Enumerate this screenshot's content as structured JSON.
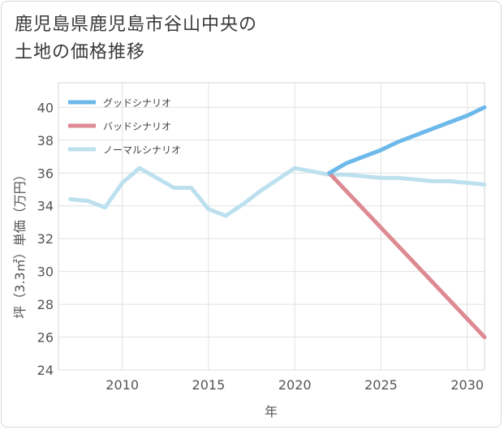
{
  "title_line1": "鹿児島県鹿児島市谷山中央の",
  "title_line2": "土地の価格推移",
  "chart_data": {
    "type": "line",
    "title": "鹿児島県鹿児島市谷山中央の土地の価格推移",
    "xlabel": "年",
    "ylabel": "坪（3.3㎡）単価（万円）",
    "xlim": [
      2006.3,
      2031
    ],
    "ylim": [
      24,
      41.5
    ],
    "xticks": [
      2010,
      2015,
      2020,
      2025,
      2030
    ],
    "yticks": [
      24,
      26,
      28,
      30,
      32,
      34,
      36,
      38,
      40
    ],
    "grid": true,
    "legend_position": "top-left",
    "series": [
      {
        "name": "グッドシナリオ",
        "color": "#6cb9ea",
        "x": [
          2022,
          2023,
          2024,
          2025,
          2026,
          2027,
          2028,
          2029,
          2030,
          2031
        ],
        "values": [
          36.0,
          36.6,
          37.0,
          37.4,
          37.9,
          38.3,
          38.7,
          39.1,
          39.5,
          40.0
        ]
      },
      {
        "name": "バッドシナリオ",
        "color": "#dd8a92",
        "x": [
          2022,
          2031
        ],
        "values": [
          36.0,
          26.0
        ]
      },
      {
        "name": "ノーマルシナリオ",
        "color": "#bde0ef",
        "x": [
          2007,
          2008,
          2009,
          2010,
          2011,
          2012,
          2013,
          2014,
          2015,
          2016,
          2017,
          2018,
          2019,
          2020,
          2021,
          2022,
          2023,
          2024,
          2025,
          2026,
          2027,
          2028,
          2029,
          2030,
          2031
        ],
        "values": [
          34.4,
          34.3,
          33.9,
          35.4,
          36.3,
          35.7,
          35.1,
          35.1,
          33.8,
          33.4,
          34.1,
          34.9,
          35.6,
          36.3,
          36.1,
          35.9,
          35.9,
          35.8,
          35.7,
          35.7,
          35.6,
          35.5,
          35.5,
          35.4,
          35.3
        ]
      }
    ]
  }
}
